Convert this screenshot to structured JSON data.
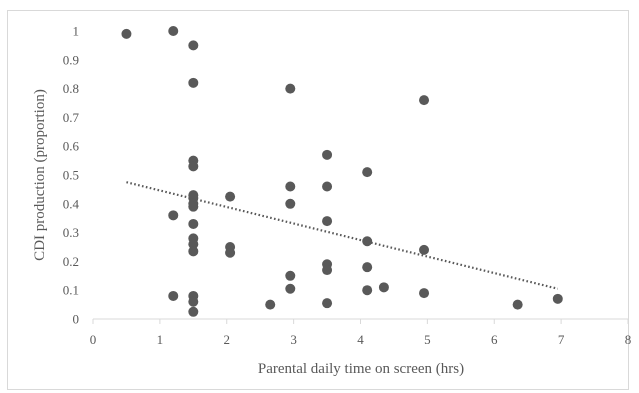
{
  "chart_data": {
    "type": "scatter",
    "xlabel": "Parental daily time on screen (hrs)",
    "ylabel": "CDI production (proportion)",
    "xlim": [
      0,
      8
    ],
    "ylim": [
      0,
      1
    ],
    "x_ticks": [
      "0",
      "1",
      "2",
      "3",
      "4",
      "5",
      "6",
      "7",
      "8"
    ],
    "y_ticks": [
      "0",
      "0.1",
      "0.2",
      "0.3",
      "0.4",
      "0.5",
      "0.6",
      "0.7",
      "0.8",
      "0.9",
      "1"
    ],
    "grid": false,
    "marker_color": "#595959",
    "trendline": {
      "style": "dotted",
      "x": [
        0.5,
        6.95
      ],
      "y": [
        0.475,
        0.105
      ]
    },
    "series": [
      {
        "points": [
          [
            0.5,
            0.99
          ],
          [
            1.2,
            1.0
          ],
          [
            1.5,
            0.95
          ],
          [
            1.5,
            0.82
          ],
          [
            2.95,
            0.8
          ],
          [
            4.95,
            0.76
          ],
          [
            1.5,
            0.55
          ],
          [
            1.5,
            0.53
          ],
          [
            3.5,
            0.57
          ],
          [
            4.1,
            0.51
          ],
          [
            2.95,
            0.46
          ],
          [
            3.5,
            0.46
          ],
          [
            1.5,
            0.43
          ],
          [
            1.5,
            0.42
          ],
          [
            1.5,
            0.4
          ],
          [
            1.5,
            0.39
          ],
          [
            2.05,
            0.425
          ],
          [
            2.95,
            0.4
          ],
          [
            1.2,
            0.36
          ],
          [
            1.5,
            0.33
          ],
          [
            3.5,
            0.34
          ],
          [
            1.5,
            0.28
          ],
          [
            1.5,
            0.26
          ],
          [
            1.5,
            0.235
          ],
          [
            4.1,
            0.27
          ],
          [
            2.05,
            0.25
          ],
          [
            2.05,
            0.23
          ],
          [
            4.95,
            0.24
          ],
          [
            3.5,
            0.19
          ],
          [
            3.5,
            0.17
          ],
          [
            4.1,
            0.18
          ],
          [
            2.95,
            0.15
          ],
          [
            2.95,
            0.105
          ],
          [
            4.35,
            0.11
          ],
          [
            4.1,
            0.1
          ],
          [
            4.95,
            0.09
          ],
          [
            1.2,
            0.08
          ],
          [
            1.5,
            0.08
          ],
          [
            1.5,
            0.06
          ],
          [
            2.65,
            0.05
          ],
          [
            3.5,
            0.055
          ],
          [
            6.35,
            0.05
          ],
          [
            6.95,
            0.07
          ],
          [
            1.5,
            0.025
          ]
        ]
      }
    ]
  }
}
